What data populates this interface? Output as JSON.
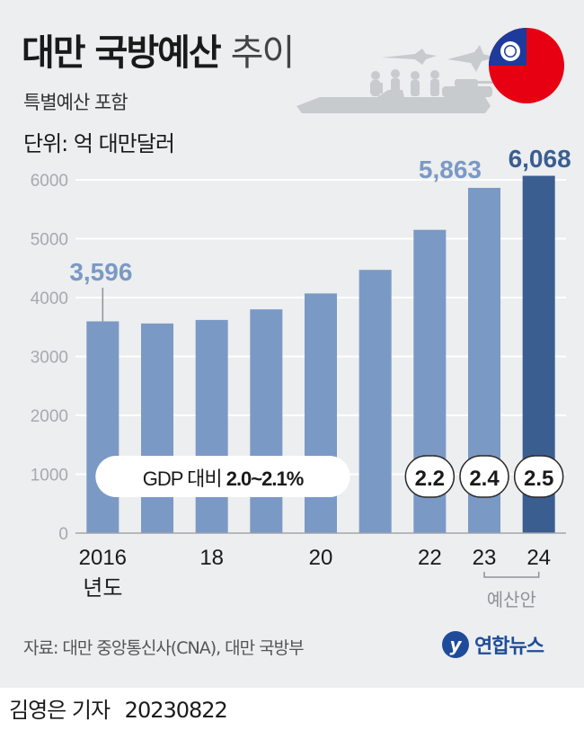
{
  "header": {
    "title_bold": "대만 국방예산",
    "title_light": "추이",
    "subtitle": "특별예산 포함",
    "unit": "단위: 억 대만달러"
  },
  "chart_data": {
    "type": "bar",
    "categories": [
      "2016",
      "2017",
      "2018",
      "2019",
      "2020",
      "2021",
      "2022",
      "2023",
      "2024"
    ],
    "x_tick_labels": [
      "2016",
      "18",
      "20",
      "22",
      "23",
      "24"
    ],
    "x_tick_sublabels": {
      "first": "년도",
      "budget": "예산안"
    },
    "values": [
      3596,
      3560,
      3620,
      3800,
      4070,
      4470,
      5150,
      5863,
      6068
    ],
    "data_labels": {
      "first": "3,596",
      "second_last": "5,863",
      "last": "6,068"
    },
    "y_ticks": [
      "0",
      "1000",
      "2000",
      "3000",
      "4000",
      "5000",
      "6000"
    ],
    "ylim": [
      0,
      6000
    ],
    "gdp_group_label": "GDP 대비",
    "gdp_group_value": "2.0~2.1%",
    "gdp_badges": [
      "2.2",
      "2.4",
      "2.5"
    ],
    "colors": {
      "bar": "#7b99c5",
      "bar_highlight": "#3b5e91",
      "label_light": "#7b99c5",
      "label_dark": "#3b5e91",
      "grid": "#ffffff",
      "axis_text": "#a6a9ad"
    }
  },
  "footer": {
    "source": "자료: 대만 중앙통신사(CNA), 대만 국방부",
    "logo_text": "연합뉴스",
    "byline": "김영은 기자",
    "date": "20230822"
  },
  "icons": [
    "taiwan-flag-icon",
    "military-silhouette-icon",
    "yonhap-logo-icon"
  ]
}
